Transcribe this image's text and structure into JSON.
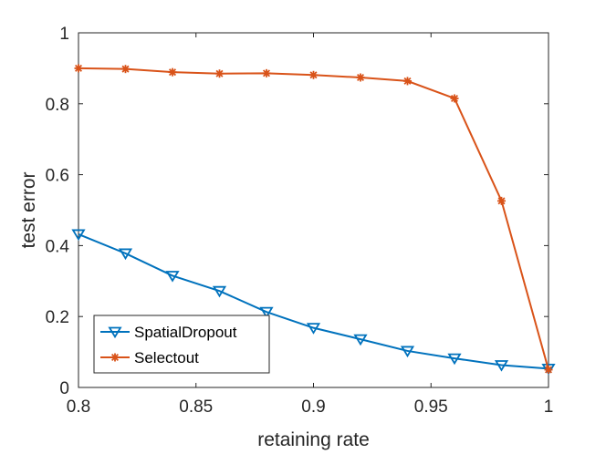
{
  "chart_data": {
    "type": "line",
    "title": "",
    "xlabel": "retaining rate",
    "ylabel": "test error",
    "xlim": [
      0.8,
      1.0
    ],
    "ylim": [
      0,
      1
    ],
    "xticks": [
      0.8,
      0.85,
      0.9,
      0.95,
      1
    ],
    "xtick_labels": [
      "0.8",
      "0.85",
      "0.9",
      "0.95",
      "1"
    ],
    "yticks": [
      0,
      0.2,
      0.4,
      0.6,
      0.8,
      1
    ],
    "ytick_labels": [
      "0",
      "0.2",
      "0.4",
      "0.6",
      "0.8",
      "1"
    ],
    "grid": false,
    "legend_location": "bottom-left",
    "x": [
      0.8,
      0.82,
      0.84,
      0.86,
      0.88,
      0.9,
      0.92,
      0.94,
      0.96,
      0.98,
      1.0
    ],
    "series": [
      {
        "name": "SpatialDropout",
        "color": "#0072BD",
        "marker": "triangle-down",
        "values": [
          0.432,
          0.378,
          0.315,
          0.272,
          0.213,
          0.168,
          0.136,
          0.103,
          0.082,
          0.063,
          0.053
        ]
      },
      {
        "name": "Selectout",
        "color": "#D95319",
        "marker": "star",
        "values": [
          0.9,
          0.898,
          0.889,
          0.885,
          0.886,
          0.881,
          0.874,
          0.864,
          0.815,
          0.526,
          0.05
        ]
      }
    ]
  }
}
